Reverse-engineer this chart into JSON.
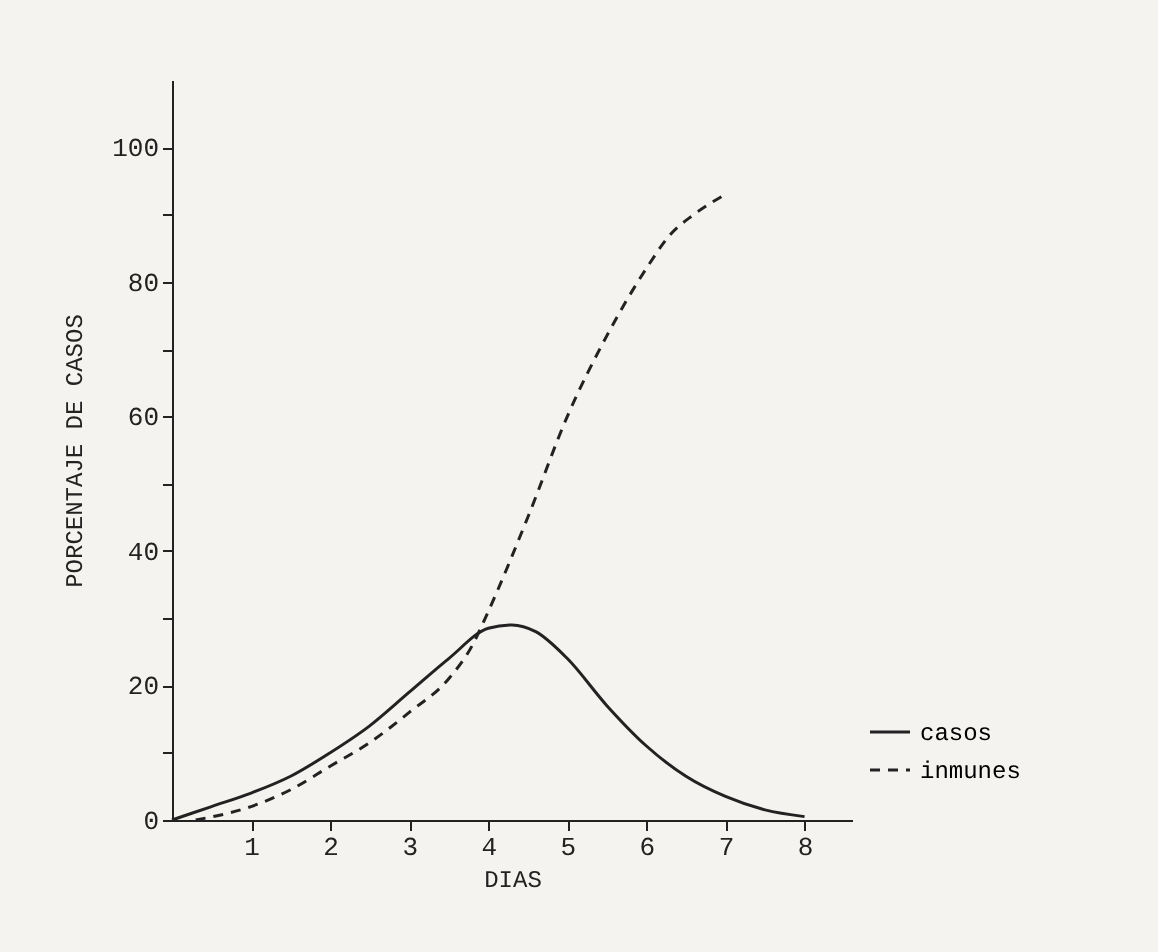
{
  "chart_data": {
    "type": "line",
    "xlabel": "DIAS",
    "ylabel": "PORCENTAJE DE CASOS",
    "xlim": [
      0,
      8.6
    ],
    "ylim": [
      0,
      110
    ],
    "xticks": [
      1,
      2,
      3,
      4,
      5,
      6,
      7,
      8
    ],
    "yticks": [
      0,
      {
        "value": 10,
        "label": null
      },
      20,
      {
        "value": 30,
        "label": null
      },
      40,
      {
        "value": 50,
        "label": null
      },
      60,
      {
        "value": 70,
        "label": null
      },
      80,
      {
        "value": 90,
        "label": null
      },
      100
    ],
    "grid": false,
    "legend": "bottom right",
    "marker": "none",
    "series": [
      {
        "name": "casos",
        "color": "#222222",
        "line_style": "solid",
        "x": [
          0,
          0.5,
          1,
          1.5,
          2,
          2.5,
          3,
          3.5,
          4,
          4.3,
          4.6,
          5,
          5.5,
          6,
          6.5,
          7,
          7.5,
          8
        ],
        "values": [
          0,
          2,
          4,
          6.5,
          10,
          14,
          19,
          24,
          28.5,
          29,
          28,
          24,
          17,
          11,
          6.5,
          3.5,
          1.5,
          0.5
        ]
      },
      {
        "name": "inmunes",
        "color": "#222222",
        "line_style": "dashed",
        "x": [
          0.3,
          1,
          1.5,
          2,
          2.5,
          3,
          3.5,
          3.8,
          4,
          4.5,
          5,
          5.5,
          6,
          6.3,
          6.6,
          7
        ],
        "values": [
          0,
          2,
          4.5,
          8,
          11.5,
          16,
          21,
          26,
          31,
          45,
          60,
          72,
          82,
          87,
          90,
          93
        ]
      }
    ]
  }
}
